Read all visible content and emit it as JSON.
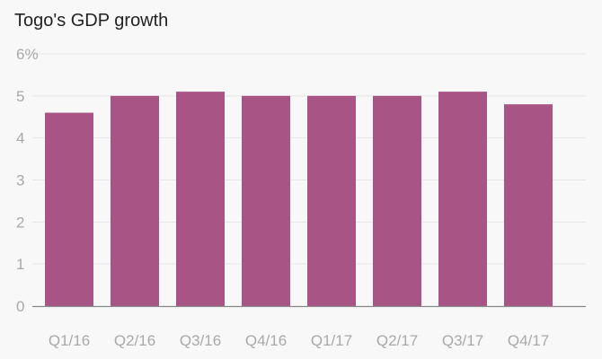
{
  "chart_data": {
    "type": "bar",
    "title": "Togo's GDP growth",
    "categories": [
      "Q1/16",
      "Q2/16",
      "Q3/16",
      "Q4/16",
      "Q1/17",
      "Q2/17",
      "Q3/17",
      "Q4/17"
    ],
    "values": [
      4.6,
      5.0,
      5.1,
      5.0,
      5.0,
      5.0,
      5.1,
      4.8
    ],
    "ylim": [
      0,
      6
    ],
    "yticks": [
      0,
      1,
      2,
      3,
      4,
      5,
      6
    ],
    "ytick_labels": [
      "0",
      "1",
      "2",
      "3",
      "4",
      "5",
      "6%"
    ],
    "xlabel": "",
    "ylabel": "",
    "grid": true,
    "colors": {
      "bar": "#a85585",
      "grid": "#e6e6e6",
      "axis": "#888888"
    }
  }
}
